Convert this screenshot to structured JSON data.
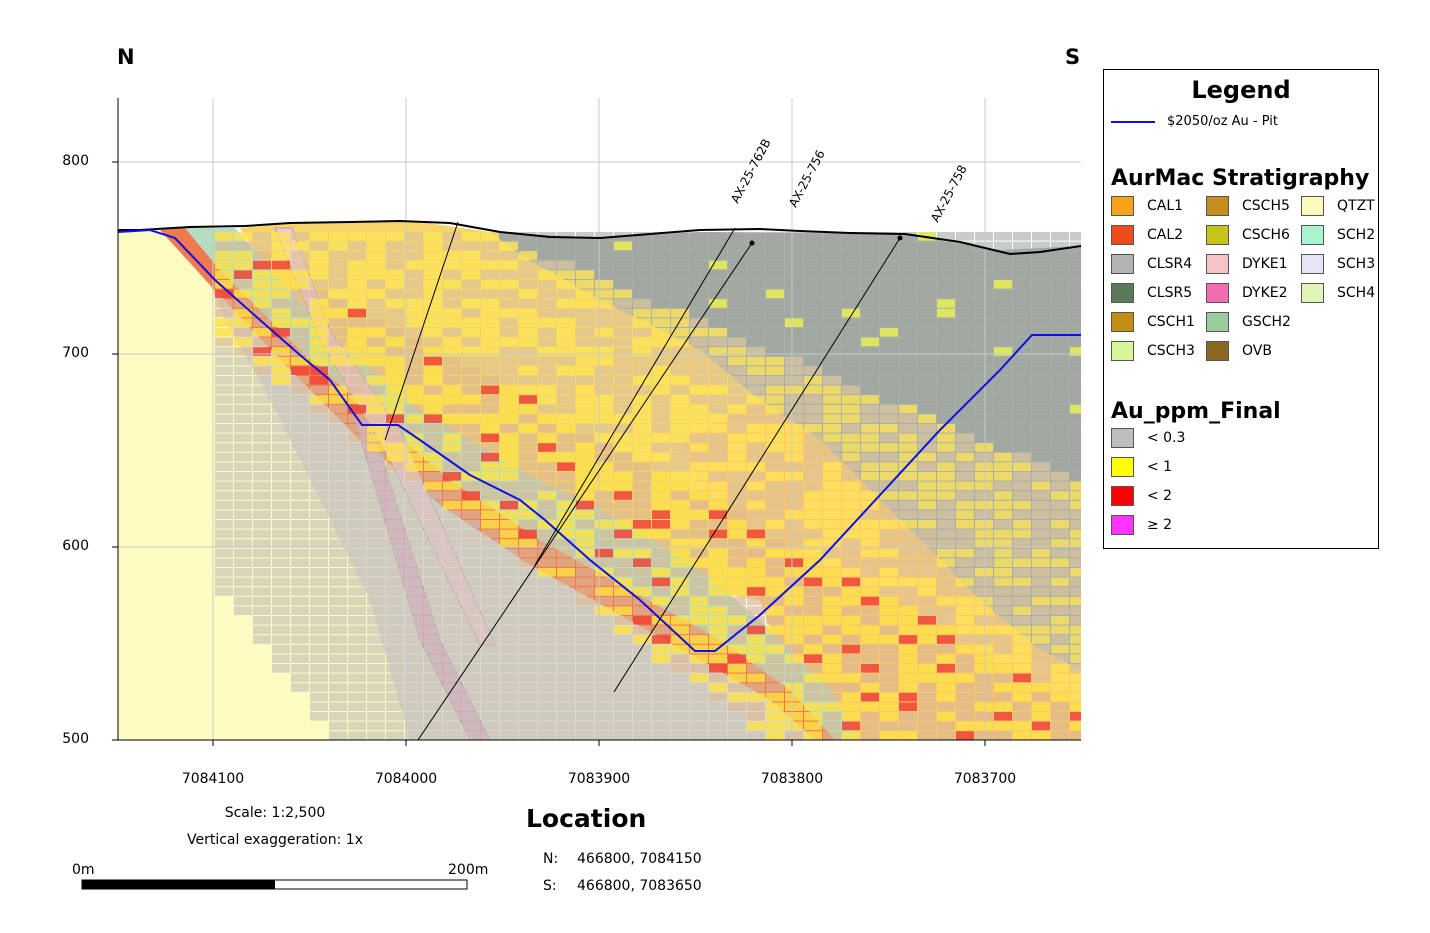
{
  "compass": {
    "north": "N",
    "south": "S"
  },
  "axes": {
    "y_ticks": [
      "800",
      "700",
      "600",
      "500"
    ],
    "x_ticks": [
      "7084100",
      "7084000",
      "7083900",
      "7083800",
      "7083700"
    ]
  },
  "drillholes": [
    "AX-25-762B",
    "AX-25-756",
    "AX-25-758"
  ],
  "scale": {
    "text": "Scale: 1:2,500",
    "exaggeration": "Vertical exaggeration: 1x",
    "bar_start": "0m",
    "bar_end": "200m"
  },
  "location": {
    "title": "Location",
    "rows": [
      {
        "key": "N:",
        "value": "466800, 7084150"
      },
      {
        "key": "S:",
        "value": "466800, 7083650"
      }
    ]
  },
  "legend": {
    "title": "Legend",
    "pit_label": "$2050/oz Au - Pit",
    "pit_color": "#1010e0",
    "strat_title": "AurMac Stratigraphy",
    "strat_items": [
      {
        "label": "CAL1",
        "color": "#f7a21b"
      },
      {
        "label": "CAL2",
        "color": "#f04b1c"
      },
      {
        "label": "CLSR4",
        "color": "#b3b3b3"
      },
      {
        "label": "CLSR5",
        "color": "#5b7a5a"
      },
      {
        "label": "CSCH1",
        "color": "#c08e12"
      },
      {
        "label": "CSCH3",
        "color": "#d9f59a"
      },
      {
        "label": "CSCH5",
        "color": "#c38e20"
      },
      {
        "label": "CSCH6",
        "color": "#c5c41a"
      },
      {
        "label": "DYKE1",
        "color": "#f8c2cb"
      },
      {
        "label": "DYKE2",
        "color": "#f06db2"
      },
      {
        "label": "GSCH2",
        "color": "#9ccc9c"
      },
      {
        "label": "OVB",
        "color": "#8a6a22"
      },
      {
        "label": "QTZT",
        "color": "#fdfbbb"
      },
      {
        "label": "SCH2",
        "color": "#a8f4d0"
      },
      {
        "label": "SCH3",
        "color": "#e4e4f6"
      },
      {
        "label": "SCH4",
        "color": "#e1f5b8"
      }
    ],
    "au_title": "Au_ppm_Final",
    "au_items": [
      {
        "label": "< 0.3",
        "color": "#bdbdbd"
      },
      {
        "label": "< 1",
        "color": "#ffff00"
      },
      {
        "label": "< 2",
        "color": "#ff0000"
      },
      {
        "label": "≥ 2",
        "color": "#ff33ff"
      }
    ]
  }
}
